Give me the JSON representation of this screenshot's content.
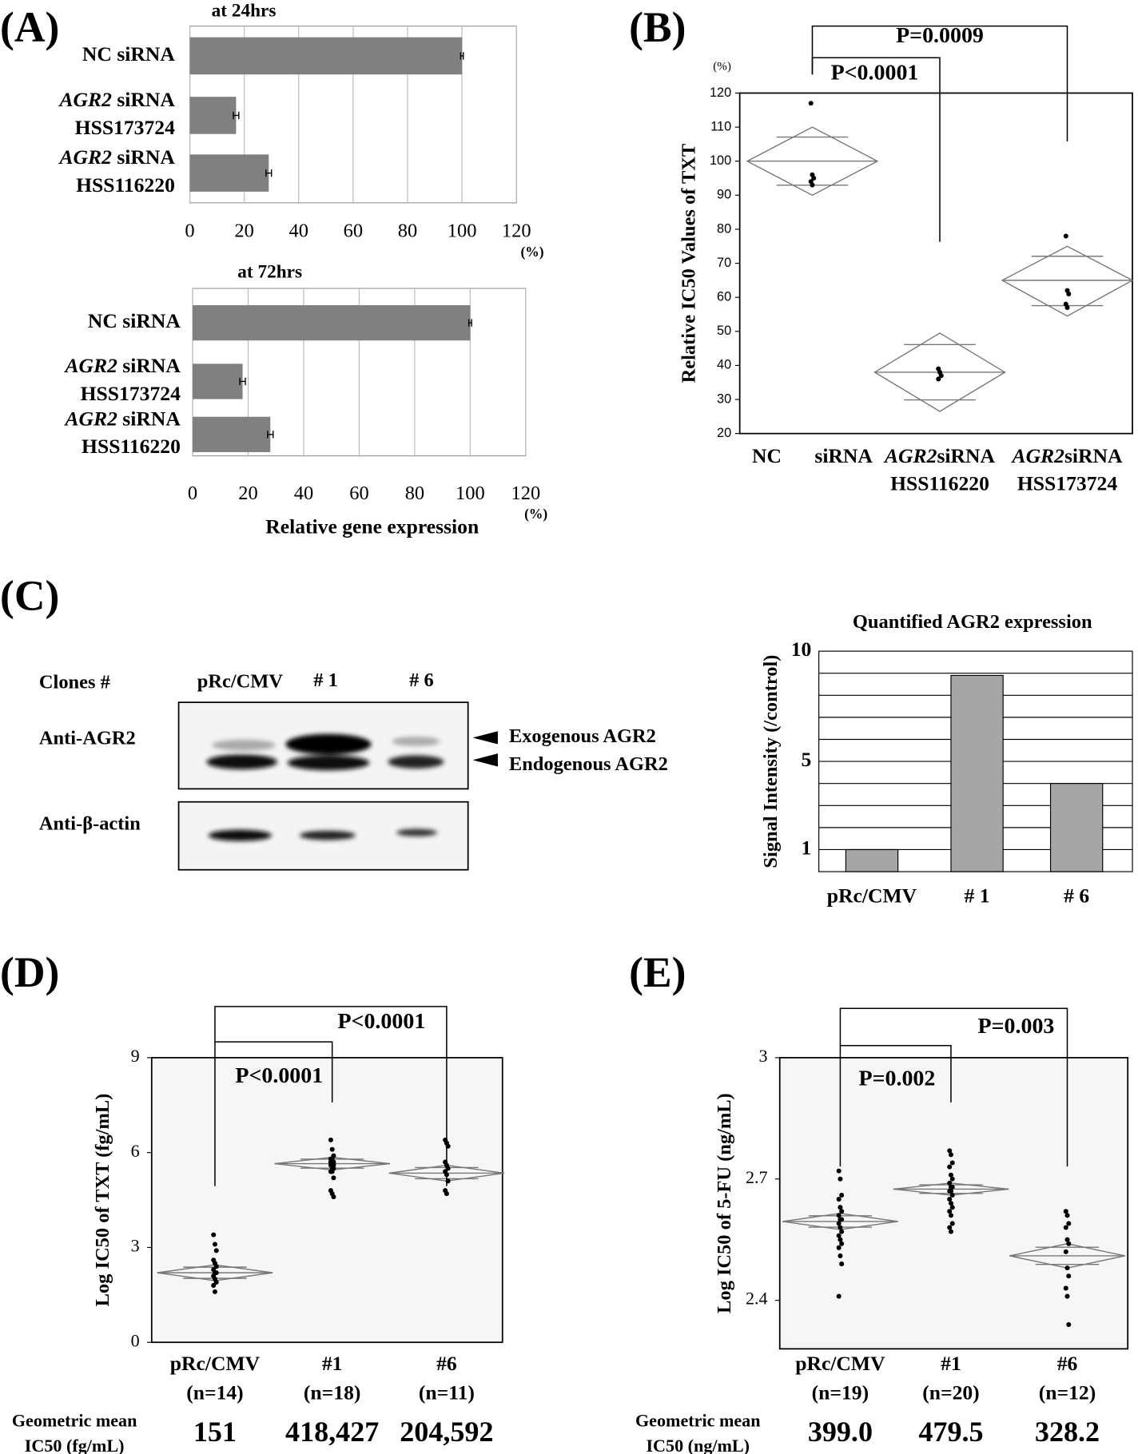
{
  "chart_data": [
    {
      "type": "bar",
      "horizontal": true,
      "panel": "(A)",
      "title": "at  24hrs",
      "categories": [
        [
          "NC siRNA"
        ],
        [
          "AGR2 siRNA",
          "HSS173724"
        ],
        [
          "AGR2 siRNA",
          "HSS116220"
        ]
      ],
      "values": [
        100,
        17,
        29
      ],
      "errors": [
        0.5,
        1,
        1
      ],
      "color": "#808080",
      "xlim": [
        0,
        120
      ],
      "xticks": [
        0,
        20,
        40,
        60,
        80,
        100,
        120
      ],
      "xunit": "(%)",
      "grid": true
    },
    {
      "type": "bar",
      "horizontal": true,
      "title": "at  72hrs",
      "categories": [
        [
          "NC siRNA"
        ],
        [
          "AGR2 siRNA",
          "HSS173724"
        ],
        [
          "AGR2 siRNA",
          "HSS116220"
        ]
      ],
      "values": [
        100,
        18,
        28
      ],
      "errors": [
        0.5,
        1,
        1
      ],
      "color": "#808080",
      "xlim": [
        0,
        120
      ],
      "xticks": [
        0,
        20,
        40,
        60,
        80,
        100,
        120
      ],
      "xunit": "(%)",
      "xlabel": "Relative gene expression",
      "grid": true
    },
    {
      "type": "diamond",
      "panel": "(B)",
      "ylabel": "Relative IC50  Values of TXT",
      "yunit": "(%)",
      "ylim": [
        20,
        120
      ],
      "yticks": [
        20,
        30,
        40,
        50,
        60,
        70,
        80,
        90,
        100,
        110,
        120
      ],
      "annotations": [
        "P=0.0009",
        "P<0.0001"
      ],
      "groups": [
        {
          "name": [
            "NC siRNA"
          ],
          "mean": 100,
          "lower": 90,
          "upper": 110,
          "points": [
            117,
            96,
            95,
            94,
            93
          ]
        },
        {
          "name": [
            "AGR2siRNA",
            "HSS116220"
          ],
          "mean": 38,
          "lower": 26.5,
          "upper": 49.5,
          "points": [
            39,
            38,
            37,
            36
          ]
        },
        {
          "name": [
            "AGR2siRNA",
            "HSS173724"
          ],
          "mean": 65,
          "lower": 54.5,
          "upper": 75,
          "points": [
            78,
            62,
            61,
            58,
            57
          ]
        }
      ]
    },
    {
      "type": "bar",
      "title": "Quantified AGR2 expression",
      "ylabel": "Signal Intensity (/control)",
      "categories": [
        "pRc/CMV",
        "# 1",
        "# 6"
      ],
      "values": [
        1,
        8.9,
        4.0
      ],
      "color": "#a6a6a6",
      "ylim": [
        0,
        10
      ],
      "yticks": [
        1,
        5,
        10
      ],
      "minor_yticks": [
        1,
        2,
        3,
        4,
        5,
        6,
        7,
        8,
        9
      ],
      "grid": true
    },
    {
      "type": "diamond",
      "panel": "(D)",
      "ylabel": "Log IC50 of TXT (fg/mL)",
      "ylim": [
        0,
        9
      ],
      "yticks": [
        0,
        3,
        6,
        9
      ],
      "annotations": [
        "P<0.0001",
        "P<0.0001"
      ],
      "summary_label": [
        "Geometric mean",
        "IC50 (fg/mL)"
      ],
      "groups": [
        {
          "name": [
            "pRc/CMV",
            "(n=14)"
          ],
          "mean": 2.2,
          "lower": 1.95,
          "upper": 2.45,
          "geo_mean": "151",
          "points": [
            3.4,
            3.1,
            2.9,
            2.6,
            2.5,
            2.4,
            2.3,
            2.2,
            2.2,
            2.1,
            2.0,
            1.9,
            1.8,
            1.6
          ]
        },
        {
          "name": [
            "#1",
            "(n=18)"
          ],
          "mean": 5.65,
          "lower": 5.45,
          "upper": 5.85,
          "geo_mean": "418,427",
          "points": [
            6.4,
            6.1,
            5.9,
            5.8,
            5.8,
            5.7,
            5.7,
            5.6,
            5.6,
            5.6,
            5.5,
            5.5,
            5.4,
            5.4,
            5.2,
            4.8,
            4.7,
            4.6
          ]
        },
        {
          "name": [
            "#6",
            "(n=11)"
          ],
          "mean": 5.35,
          "lower": 5.1,
          "upper": 5.6,
          "geo_mean": "204,592",
          "points": [
            6.4,
            6.3,
            6.2,
            5.7,
            5.6,
            5.5,
            5.4,
            5.3,
            5.1,
            4.8,
            4.7
          ]
        }
      ]
    },
    {
      "type": "diamond",
      "panel": "(E)",
      "ylabel": "Log IC50 of 5-FU (ng/mL)",
      "ylim": [
        2.28,
        3
      ],
      "yticks": [
        2.4,
        2.7,
        3
      ],
      "annotations": [
        "P=0.003",
        "P=0.002"
      ],
      "summary_label": [
        "Geometric mean",
        "IC50 (ng/mL)"
      ],
      "groups": [
        {
          "name": [
            "pRc/CMV",
            "(n=19)"
          ],
          "mean": 2.595,
          "lower": 2.575,
          "upper": 2.615,
          "geo_mean": "399.0",
          "points": [
            2.72,
            2.7,
            2.66,
            2.65,
            2.63,
            2.62,
            2.61,
            2.6,
            2.6,
            2.59,
            2.58,
            2.57,
            2.56,
            2.55,
            2.54,
            2.53,
            2.51,
            2.49,
            2.41
          ]
        },
        {
          "name": [
            "#1",
            "(n=20)"
          ],
          "mean": 2.675,
          "lower": 2.66,
          "upper": 2.69,
          "geo_mean": "479.5",
          "points": [
            2.77,
            2.76,
            2.74,
            2.73,
            2.71,
            2.7,
            2.69,
            2.68,
            2.68,
            2.67,
            2.67,
            2.66,
            2.65,
            2.64,
            2.63,
            2.62,
            2.61,
            2.59,
            2.58,
            2.57
          ]
        },
        {
          "name": [
            "#6",
            "(n=12)"
          ],
          "mean": 2.51,
          "lower": 2.48,
          "upper": 2.54,
          "geo_mean": "328.2",
          "points": [
            2.62,
            2.61,
            2.59,
            2.58,
            2.55,
            2.54,
            2.52,
            2.48,
            2.46,
            2.43,
            2.41,
            2.34
          ]
        }
      ]
    }
  ],
  "blot": {
    "panel": "(C)",
    "clones_label": "Clones  #",
    "lanes": [
      "pRc/CMV",
      "# 1",
      "# 6"
    ],
    "rows": [
      "Anti-AGR2",
      "Anti-β-actin"
    ],
    "arrows": [
      "Exogenous AGR2",
      "Endogenous AGR2"
    ]
  }
}
